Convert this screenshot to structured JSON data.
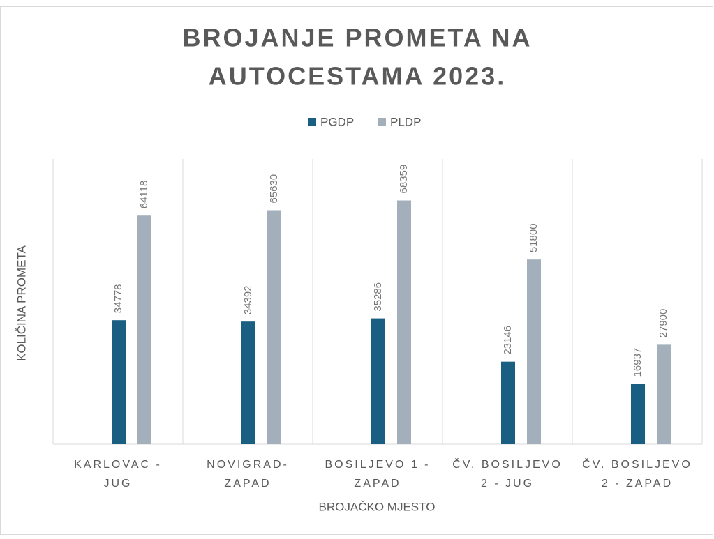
{
  "chart_data": {
    "type": "bar",
    "title": [
      "BROJANJE PROMETA NA",
      "AUTOCESTAMA 2023."
    ],
    "x_label": "BROJAČKO MJESTO",
    "y_label": "KOLIČINA PROMETA",
    "categories": [
      [
        "KARLOVAC -",
        "JUG"
      ],
      [
        "NOVIGRAD-",
        "ZAPAD"
      ],
      [
        "BOSILJEVO 1 -",
        "ZAPAD"
      ],
      [
        "ČV. BOSILJEVO",
        "2 - JUG"
      ],
      [
        "ČV. BOSILJEVO",
        "2 - ZAPAD"
      ]
    ],
    "series": [
      {
        "name": "PGDP",
        "color": "#1a5e82",
        "values": [
          34778,
          34392,
          35286,
          23146,
          16937
        ]
      },
      {
        "name": "PLDP",
        "color": "#a3b0bb",
        "values": [
          64118,
          65630,
          68359,
          51800,
          27900
        ]
      }
    ],
    "ylim": [
      0,
      80000
    ],
    "legend": "top"
  }
}
